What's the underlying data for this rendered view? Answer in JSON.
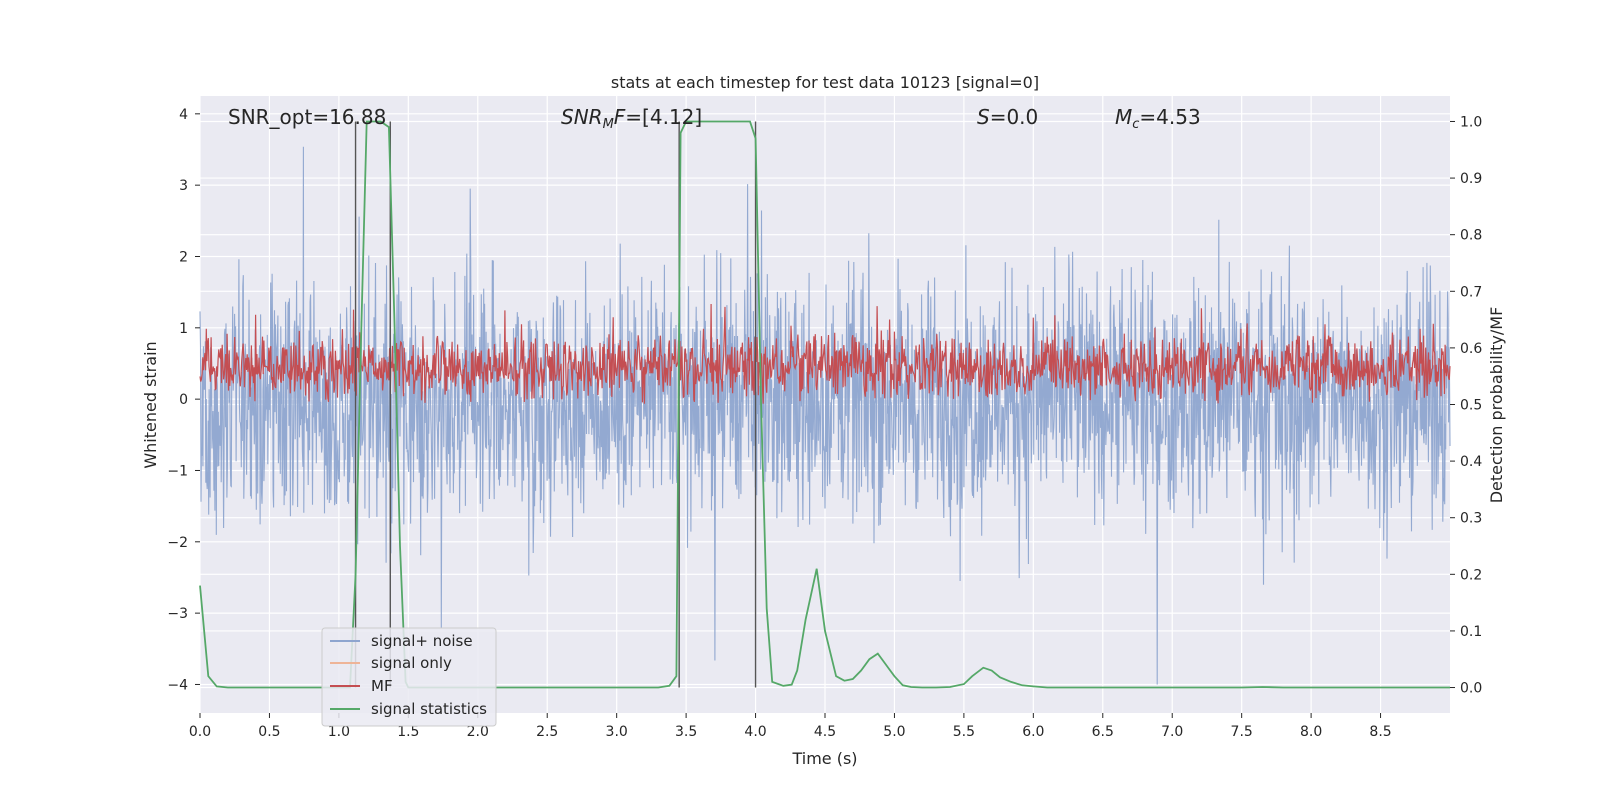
{
  "chart_data": {
    "type": "line",
    "title": "stats at each timestep for test data 10123 [signal=0]",
    "xlabel": "Time (s)",
    "ylabel_left": "Whitened strain",
    "ylabel_right": "Detection probability/MF",
    "xlim": [
      0,
      9.0
    ],
    "ylim_left": [
      -4.4,
      4.25
    ],
    "ylim_right": [
      -0.045,
      1.045
    ],
    "xticks": [
      "0.0",
      "0.5",
      "1.0",
      "1.5",
      "2.0",
      "2.5",
      "3.0",
      "3.5",
      "4.0",
      "4.5",
      "5.0",
      "5.5",
      "6.0",
      "6.5",
      "7.0",
      "7.5",
      "8.0",
      "8.5"
    ],
    "yticks_left": [
      "4",
      "3",
      "2",
      "1",
      "0",
      "−1",
      "−2",
      "−3",
      "−4"
    ],
    "yticks_right": [
      "1.0",
      "0.9",
      "0.8",
      "0.7",
      "0.6",
      "0.5",
      "0.4",
      "0.3",
      "0.2",
      "0.1",
      "0.0"
    ],
    "grid": true,
    "annotations": {
      "snr_opt": "SNR_opt=16.88",
      "snr_mf_base": "SNR",
      "snr_mf_sub": "M",
      "snr_mf_rest": "F=[4.12]",
      "s_var": "S",
      "s_val": "=0.0",
      "mc_var": "M",
      "mc_sub": "c",
      "mc_val": "=4.53"
    },
    "legend": {
      "position": "lower-left",
      "entries": [
        {
          "label": "signal+ noise",
          "color": "#8ea5cf"
        },
        {
          "label": "signal only",
          "color": "#eeb497"
        },
        {
          "label": "MF",
          "color": "#c44e52"
        },
        {
          "label": "signal statistics",
          "color": "#55a868"
        }
      ]
    },
    "series": [
      {
        "name": "signal+ noise",
        "axis": "left",
        "kind": "noise",
        "amplitude_range": [
          -4.0,
          4.0
        ],
        "color": "#8ea5cf"
      },
      {
        "name": "MF",
        "axis": "right",
        "kind": "noise",
        "value_range": [
          0.5,
          0.63
        ],
        "color": "#c44e52"
      },
      {
        "name": "signal statistics",
        "axis": "right",
        "color": "#55a868",
        "x": [
          0.0,
          0.06,
          0.12,
          0.2,
          0.5,
          1.0,
          1.08,
          1.12,
          1.16,
          1.2,
          1.25,
          1.3,
          1.36,
          1.4,
          1.44,
          1.48,
          1.5,
          2.0,
          2.5,
          3.0,
          3.3,
          3.38,
          3.43,
          3.46,
          3.5,
          3.6,
          3.8,
          3.96,
          4.0,
          4.04,
          4.08,
          4.12,
          4.2,
          4.26,
          4.3,
          4.36,
          4.44,
          4.5,
          4.58,
          4.64,
          4.7,
          4.76,
          4.82,
          4.88,
          4.94,
          5.0,
          5.06,
          5.12,
          5.2,
          5.3,
          5.4,
          5.5,
          5.56,
          5.64,
          5.7,
          5.76,
          5.84,
          5.92,
          6.0,
          6.1,
          6.5,
          7.0,
          7.5,
          7.65,
          7.8,
          8.5,
          9.0
        ],
        "y": [
          0.18,
          0.02,
          0.002,
          0.0,
          0.0,
          0.0,
          0.0,
          0.2,
          0.62,
          1.0,
          1.0,
          1.0,
          0.99,
          0.65,
          0.25,
          0.01,
          0.0,
          0.0,
          0.0,
          0.0,
          0.0,
          0.003,
          0.02,
          0.98,
          1.0,
          1.0,
          1.0,
          1.0,
          0.97,
          0.5,
          0.14,
          0.01,
          0.003,
          0.005,
          0.03,
          0.12,
          0.21,
          0.1,
          0.02,
          0.012,
          0.015,
          0.03,
          0.05,
          0.06,
          0.04,
          0.02,
          0.004,
          0.001,
          0.0,
          0.0,
          0.001,
          0.006,
          0.02,
          0.035,
          0.03,
          0.018,
          0.01,
          0.004,
          0.002,
          0.0,
          0.0,
          0.0,
          0.0,
          0.001,
          0.0,
          0.0,
          0.0
        ]
      }
    ],
    "vlines_x": [
      1.12,
      1.37,
      3.45,
      4.0
    ]
  }
}
